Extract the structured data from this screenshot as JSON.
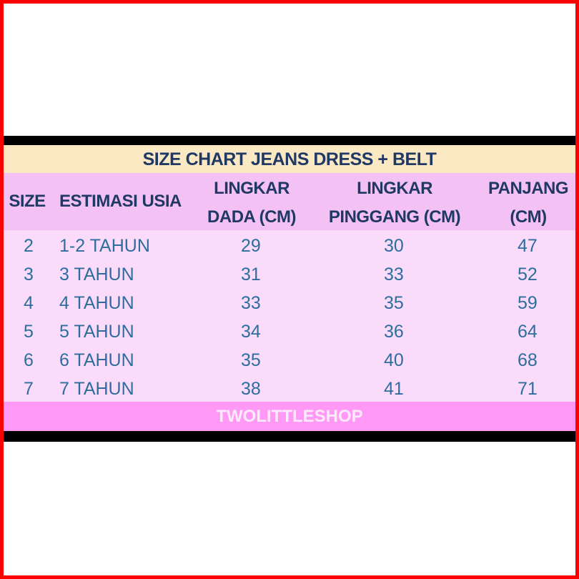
{
  "title": "SIZE CHART JEANS DRESS + BELT",
  "headers": {
    "size": "SIZE",
    "age": "ESTIMASI USIA",
    "chest1": "LINGKAR",
    "chest2": "DADA (CM)",
    "waist1": "LINGKAR",
    "waist2": "PINGGANG (CM)",
    "length1": "PANJANG",
    "length2": "(CM)"
  },
  "rows": [
    {
      "size": "2",
      "age": "1-2 TAHUN",
      "chest": "29",
      "waist": "30",
      "length": "47"
    },
    {
      "size": "3",
      "age": "3 TAHUN",
      "chest": "31",
      "waist": "33",
      "length": "52"
    },
    {
      "size": "4",
      "age": "4 TAHUN",
      "chest": "33",
      "waist": "35",
      "length": "59"
    },
    {
      "size": "5",
      "age": "5 TAHUN",
      "chest": "34",
      "waist": "36",
      "length": "64"
    },
    {
      "size": "6",
      "age": "6 TAHUN",
      "chest": "35",
      "waist": "40",
      "length": "68"
    },
    {
      "size": "7",
      "age": "7 TAHUN",
      "chest": "38",
      "waist": "41",
      "length": "71"
    }
  ],
  "footer": "TWOLITTLESHOP"
}
